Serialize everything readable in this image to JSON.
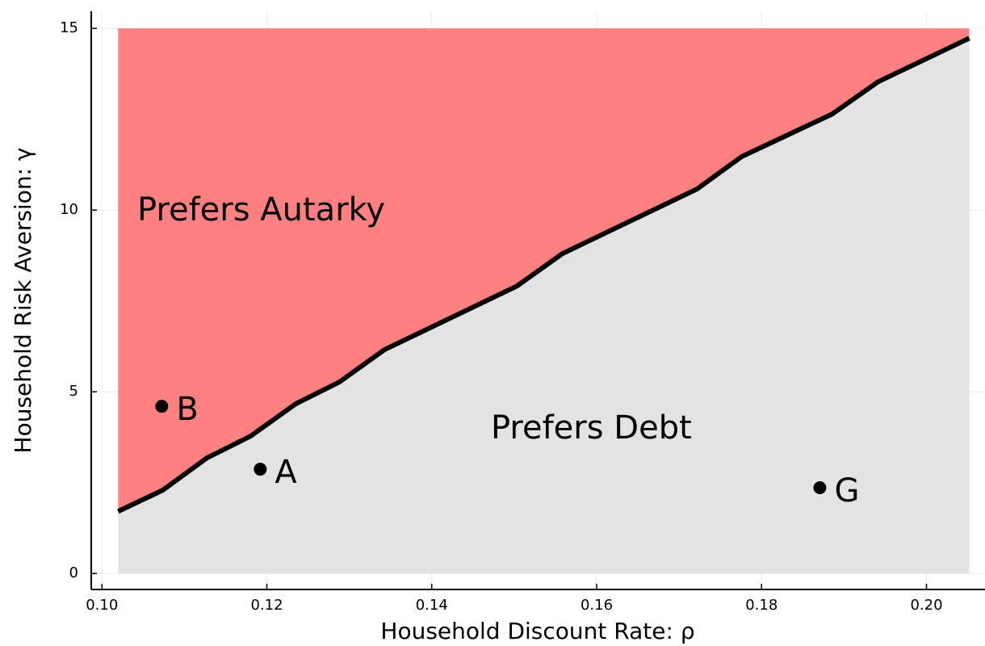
{
  "chart_data": {
    "type": "line",
    "x_label": "Household Discount Rate: ρ",
    "y_label": "Household Risk Aversion: γ",
    "x": [
      0.10196,
      0.10735,
      0.11274,
      0.11803,
      0.12351,
      0.1288,
      0.13428,
      0.15034,
      0.15583,
      0.17218,
      0.17757,
      0.18854,
      0.19413,
      0.20519
    ],
    "values": [
      1.71,
      2.29,
      3.18,
      3.78,
      4.67,
      5.27,
      6.16,
      7.91,
      8.8,
      10.58,
      11.47,
      12.64,
      13.53,
      14.73
    ],
    "color": "#000000",
    "fill_above": "#ff8080",
    "fill_below": "#e3e3e3",
    "shade_range": [
      0,
      15
    ],
    "annotations": [
      "Prefers Autarky",
      "Prefers Debt"
    ],
    "points": {
      "x": [
        0.10725,
        0.1192,
        0.18707
      ],
      "values": [
        4.6,
        2.87,
        2.36
      ],
      "labels": [
        "B",
        "A",
        "G"
      ],
      "color": "#000000"
    },
    "xlim": [
      0.0987,
      0.2071
    ],
    "ylim": [
      -0.44,
      15.47
    ],
    "xticks": [
      {
        "value": 0.1,
        "label": "0.10"
      },
      {
        "value": 0.12,
        "label": "0.12"
      },
      {
        "value": 0.14,
        "label": "0.14"
      },
      {
        "value": 0.16,
        "label": "0.16"
      },
      {
        "value": 0.18,
        "label": "0.18"
      },
      {
        "value": 0.2,
        "label": "0.20"
      }
    ],
    "yticks": [
      0,
      5,
      10,
      15
    ],
    "grid": true
  }
}
